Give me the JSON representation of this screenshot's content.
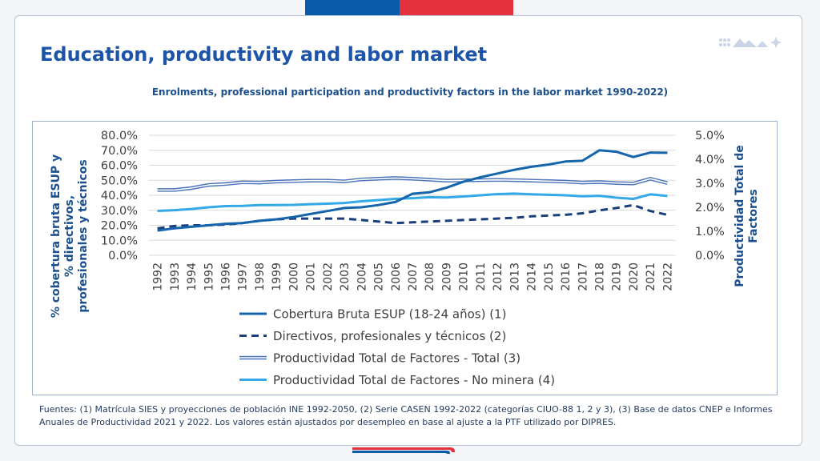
{
  "page": {
    "title": "Education, productivity and labor market",
    "subtitle": "Enrolments, professional participation and productivity factors in the labor market 1990-2022)",
    "source": "Fuentes: (1) Matrícula SIES y proyecciones de población INE 1992-2050, (2) Serie CASEN 1992-2022 (categorías CIUO-88 1, 2 y 3), (3) Base de datos CNEP e Informes Anuales de Productividad 2021 y 2022. Los valores están ajustados por desempleo en base al ajuste a la PTF utilizado por DIPRES."
  },
  "colors": {
    "flag_blue": "#0a5ca8",
    "flag_red": "#e5313d",
    "title": "#1b54a8",
    "axis_title": "#1b4f8e"
  },
  "chart_data": {
    "type": "line",
    "x": [
      "1992",
      "1993",
      "1994",
      "1995",
      "1996",
      "1997",
      "1998",
      "1999",
      "2000",
      "2001",
      "2002",
      "2003",
      "2004",
      "2005",
      "2006",
      "2007",
      "2008",
      "2009",
      "2010",
      "2011",
      "2012",
      "2013",
      "2014",
      "2015",
      "2016",
      "2017",
      "2018",
      "2019",
      "2020",
      "2021",
      "2022"
    ],
    "ylabel": "% cobertura bruta ESUP y % directivos, profesionales y técnicos",
    "y2label": "Productividad Total de Factores",
    "ylim": [
      0,
      0.8
    ],
    "y2lim": [
      0,
      0.05
    ],
    "yticks": [
      "0.0%",
      "10.0%",
      "20.0%",
      "30.0%",
      "40.0%",
      "50.0%",
      "60.0%",
      "70.0%",
      "80.0%"
    ],
    "y2ticks": [
      "0.0%",
      "1.0%",
      "2.0%",
      "3.0%",
      "4.0%",
      "5.0%"
    ],
    "grid": true,
    "legend_position": "bottom",
    "series": [
      {
        "name": "Cobertura Bruta ESUP (18-24 años) (1)",
        "axis": "left",
        "style": "solid",
        "color": "#1565ad",
        "values": [
          0.165,
          0.18,
          0.19,
          0.2,
          0.21,
          0.215,
          0.23,
          0.24,
          0.255,
          0.275,
          0.295,
          0.315,
          0.32,
          0.335,
          0.355,
          0.41,
          0.42,
          0.45,
          0.49,
          0.52,
          0.545,
          0.57,
          0.59,
          0.605,
          0.625,
          0.63,
          0.7,
          0.69,
          0.655,
          0.685,
          0.683
        ]
      },
      {
        "name": "Directivos, profesionales y técnicos (2)",
        "axis": "left",
        "style": "dashed",
        "color": "#1b3f7a",
        "values": [
          0.18,
          0.195,
          0.2,
          0.2,
          0.205,
          0.215,
          0.23,
          0.24,
          0.245,
          0.245,
          0.245,
          0.245,
          0.235,
          0.225,
          0.215,
          0.22,
          0.225,
          0.23,
          0.235,
          0.24,
          0.245,
          0.25,
          0.26,
          0.265,
          0.27,
          0.28,
          0.3,
          0.315,
          0.335,
          0.295,
          0.27
        ]
      },
      {
        "name": "Productividad Total de Factores - Total (3)",
        "axis": "right",
        "style": "double",
        "color": "#4a73b8",
        "values": [
          0.0272,
          0.0272,
          0.028,
          0.0293,
          0.0297,
          0.0304,
          0.0303,
          0.0307,
          0.0309,
          0.0311,
          0.0311,
          0.0308,
          0.0316,
          0.0319,
          0.0322,
          0.0319,
          0.0315,
          0.0311,
          0.0312,
          0.0313,
          0.0314,
          0.0313,
          0.0311,
          0.0309,
          0.0307,
          0.0303,
          0.0305,
          0.0301,
          0.0299,
          0.0319,
          0.0301
        ]
      },
      {
        "name": "Productividad Total de Factores - No minera (4)",
        "axis": "right",
        "style": "solid",
        "color": "#35a9e8",
        "values": [
          0.0185,
          0.0188,
          0.0193,
          0.02,
          0.0205,
          0.0206,
          0.0209,
          0.0209,
          0.021,
          0.0213,
          0.0215,
          0.0218,
          0.0225,
          0.023,
          0.0235,
          0.0238,
          0.0242,
          0.0241,
          0.0245,
          0.025,
          0.0255,
          0.0257,
          0.0254,
          0.0252,
          0.025,
          0.0246,
          0.0248,
          0.024,
          0.0235,
          0.0254,
          0.0247
        ]
      }
    ]
  }
}
